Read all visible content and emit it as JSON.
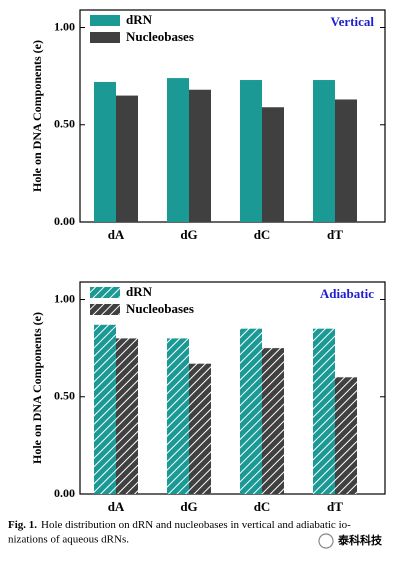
{
  "charts": [
    {
      "chart_data": {
        "type": "bar",
        "y_label": "Hole on DNA Components (e)",
        "annotation": "Vertical",
        "hatch": false,
        "categories": [
          "dA",
          "dG",
          "dC",
          "dT"
        ],
        "series": [
          {
            "name": "dRN",
            "color": "#1b9a95",
            "values": [
              0.72,
              0.74,
              0.73,
              0.73
            ]
          },
          {
            "name": "Nucleobases",
            "color": "#404040",
            "values": [
              0.65,
              0.68,
              0.59,
              0.63
            ]
          }
        ],
        "ylim": [
          0,
          1.09
        ],
        "yticks": [
          {
            "value": 0,
            "label": "0.00"
          },
          {
            "value": 0.5,
            "label": "0.50"
          },
          {
            "value": 1,
            "label": "1.00"
          }
        ]
      }
    },
    {
      "chart_data": {
        "type": "bar",
        "y_label": "Hole on DNA Components (e)",
        "annotation": "Adiabatic",
        "hatch": true,
        "categories": [
          "dA",
          "dG",
          "dC",
          "dT"
        ],
        "series": [
          {
            "name": "dRN",
            "color": "#1b9a95",
            "values": [
              0.87,
              0.8,
              0.85,
              0.85
            ]
          },
          {
            "name": "Nucleobases",
            "color": "#404040",
            "values": [
              0.8,
              0.67,
              0.75,
              0.6
            ]
          }
        ],
        "ylim": [
          0,
          1.09
        ],
        "yticks": [
          {
            "value": 0,
            "label": "0.00"
          },
          {
            "value": 0.5,
            "label": "0.50"
          },
          {
            "value": 1,
            "label": "1.00"
          }
        ]
      }
    }
  ],
  "caption": {
    "label": "Fig. 1.",
    "lines": [
      "Hole distribution on dRN and nucleobases in vertical and adiabatic io-",
      "nizations of aqueous dRNs."
    ]
  },
  "watermark": "泰科科技"
}
